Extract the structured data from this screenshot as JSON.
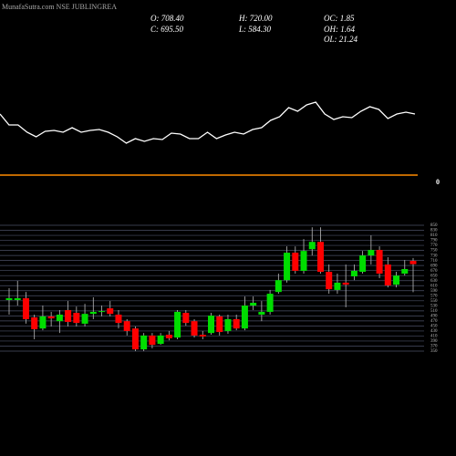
{
  "chart_data": {
    "type": "candlestick",
    "title": "MunafaSutra.com NSE JUBLINGREA",
    "header": {
      "open": "O: 708.40",
      "high": "H: 720.00",
      "oc": "OC: 1.85",
      "close": "C: 695.50",
      "low": "L: 584.30",
      "oh": "OH: 1.64",
      "ol": "OL: 21.24"
    },
    "indicator": {
      "color": "#ffffff",
      "values": [
        55,
        43,
        43,
        35,
        30,
        36,
        37,
        35,
        40,
        35,
        37,
        38,
        35,
        30,
        23,
        28,
        25,
        28,
        27,
        34,
        33,
        28,
        28,
        35,
        28,
        32,
        35,
        33,
        38,
        40,
        48,
        52,
        62,
        58,
        65,
        68,
        55,
        49,
        52,
        51,
        58,
        63,
        60,
        50,
        55,
        57,
        55
      ],
      "ylim": [
        0,
        80
      ],
      "baseline": 0,
      "baseline_color": "#ff8c00"
    },
    "open": [
      553,
      553,
      560,
      484,
      440,
      488,
      469,
      513,
      502,
      459,
      498,
      506,
      520,
      495,
      469,
      440,
      357,
      412,
      379,
      415,
      404,
      502,
      469,
      415,
      422,
      488,
      430,
      477,
      440,
      531,
      495,
      506,
      585,
      632,
      741,
      669,
      755,
      784,
      665,
      593,
      622,
      647,
      665,
      730,
      752,
      694,
      614,
      658,
      708.4
    ],
    "high": [
      600,
      629,
      585,
      495,
      531,
      506,
      513,
      549,
      527,
      538,
      564,
      531,
      549,
      513,
      477,
      448,
      422,
      422,
      422,
      430,
      513,
      513,
      477,
      430,
      502,
      495,
      495,
      495,
      567,
      567,
      549,
      593,
      658,
      766,
      766,
      795,
      842,
      842,
      694,
      658,
      694,
      694,
      748,
      810,
      766,
      723,
      665,
      712,
      720
    ],
    "low": [
      495,
      531,
      459,
      397,
      433,
      448,
      422,
      448,
      448,
      448,
      477,
      488,
      488,
      440,
      412,
      350,
      350,
      361,
      375,
      393,
      397,
      451,
      404,
      397,
      415,
      412,
      419,
      433,
      433,
      513,
      469,
      495,
      578,
      622,
      658,
      658,
      730,
      658,
      578,
      578,
      524,
      632,
      658,
      694,
      640,
      603,
      603,
      650,
      584.3
    ],
    "close": [
      560,
      560,
      477,
      437,
      488,
      480,
      495,
      466,
      462,
      498,
      506,
      509,
      498,
      462,
      430,
      357,
      412,
      375,
      412,
      401,
      506,
      462,
      412,
      408,
      491,
      426,
      477,
      440,
      531,
      542,
      506,
      578,
      632,
      741,
      669,
      748,
      784,
      665,
      596,
      622,
      614,
      669,
      730,
      752,
      658,
      611,
      650,
      676,
      695.5
    ],
    "up_color": "#00dd00",
    "down_color": "#ff0000",
    "ylim": [
      350,
      850
    ],
    "yticks": [
      350,
      370,
      390,
      410,
      430,
      450,
      470,
      490,
      510,
      530,
      550,
      570,
      590,
      610,
      630,
      650,
      670,
      690,
      710,
      730,
      750,
      770,
      790,
      810,
      830,
      850
    ],
    "grid": true
  }
}
